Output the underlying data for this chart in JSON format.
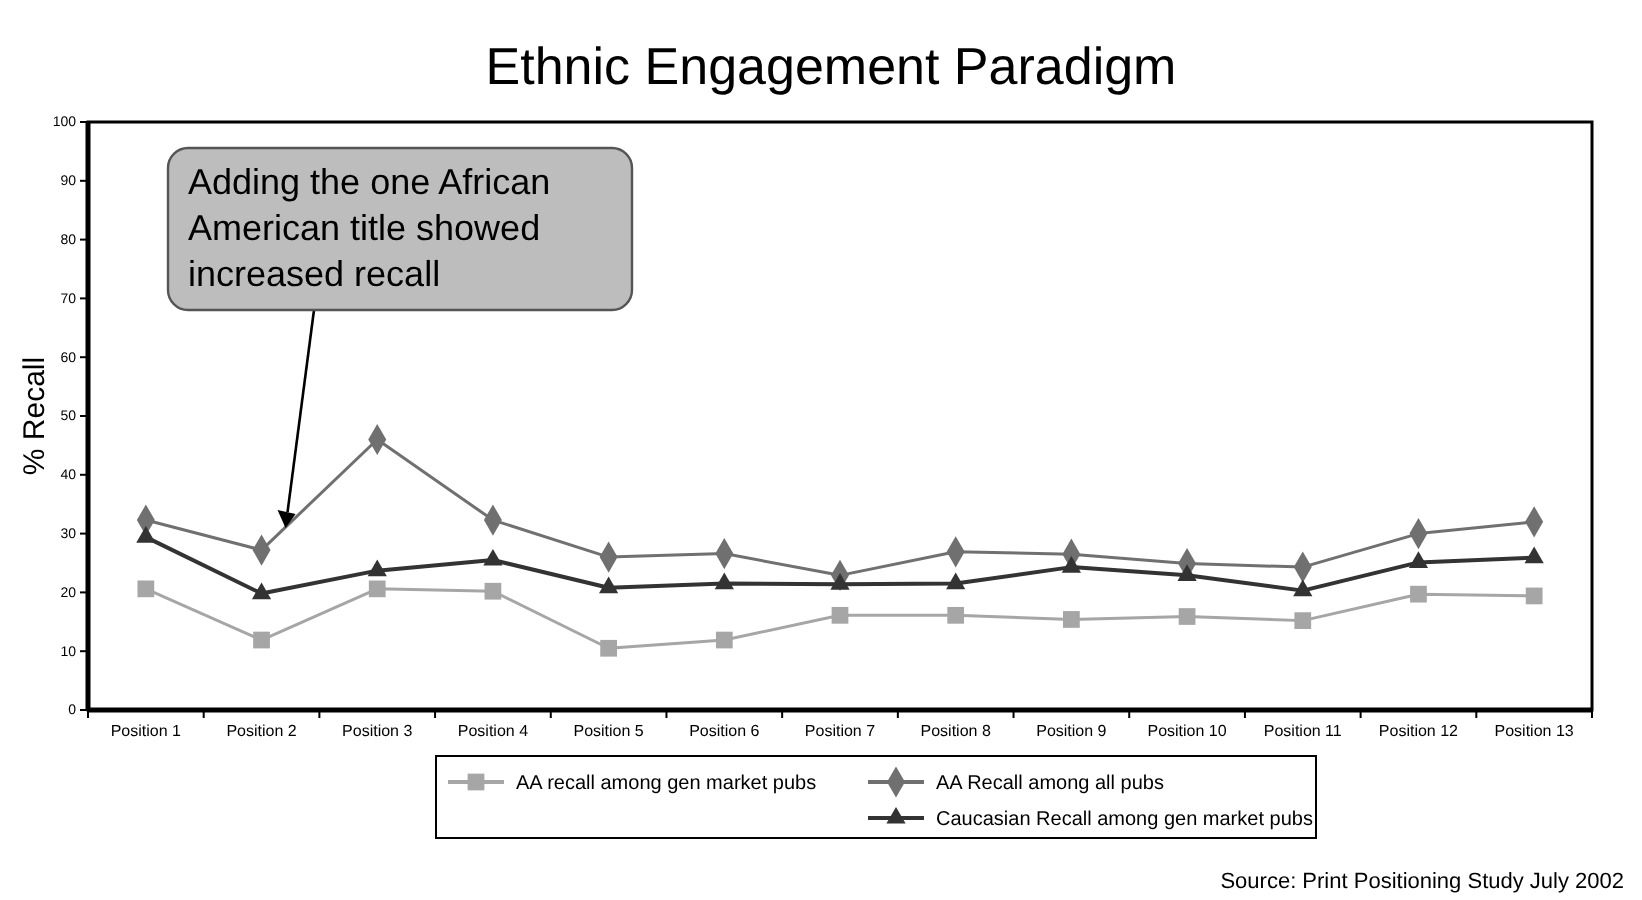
{
  "chart_data": {
    "type": "line",
    "title": "Ethnic Engagement Paradigm",
    "ylabel": "% Recall",
    "categories": [
      "Position 1",
      "Position 2",
      "Position 3",
      "Position 4",
      "Position 5",
      "Position 6",
      "Position 7",
      "Position 8",
      "Position 9",
      "Position 10",
      "Position 11",
      "Position 12",
      "Position 13"
    ],
    "series": [
      {
        "name": "AA recall among gen market pubs",
        "color": "#a6a6a6",
        "marker": "square",
        "values": [
          20.6,
          11.9,
          20.6,
          20.2,
          10.5,
          11.9,
          16.1,
          16.1,
          15.4,
          15.9,
          15.2,
          19.7,
          19.4
        ]
      },
      {
        "name": "AA Recall among all pubs",
        "color": "#707070",
        "marker": "diamond",
        "values": [
          32.3,
          27.2,
          46,
          32.3,
          26,
          26.6,
          22.9,
          26.9,
          26.5,
          24.9,
          24.3,
          30,
          32
        ]
      },
      {
        "name": "Caucasian Recall among gen market pubs",
        "color": "#333333",
        "marker": "triangle",
        "values": [
          29.4,
          19.8,
          23.7,
          25.5,
          20.8,
          21.5,
          21.4,
          21.5,
          24.3,
          22.9,
          20.3,
          25.1,
          25.9
        ]
      }
    ],
    "ylim": [
      0,
      100
    ],
    "yticks": [
      0,
      10,
      20,
      30,
      40,
      50,
      60,
      70,
      80,
      90,
      100
    ],
    "grid": false,
    "legend": "bottom",
    "annotations": [
      "Adding the one African American title showed increased recall",
      "Source: Print Positioning Study July 2002"
    ]
  }
}
